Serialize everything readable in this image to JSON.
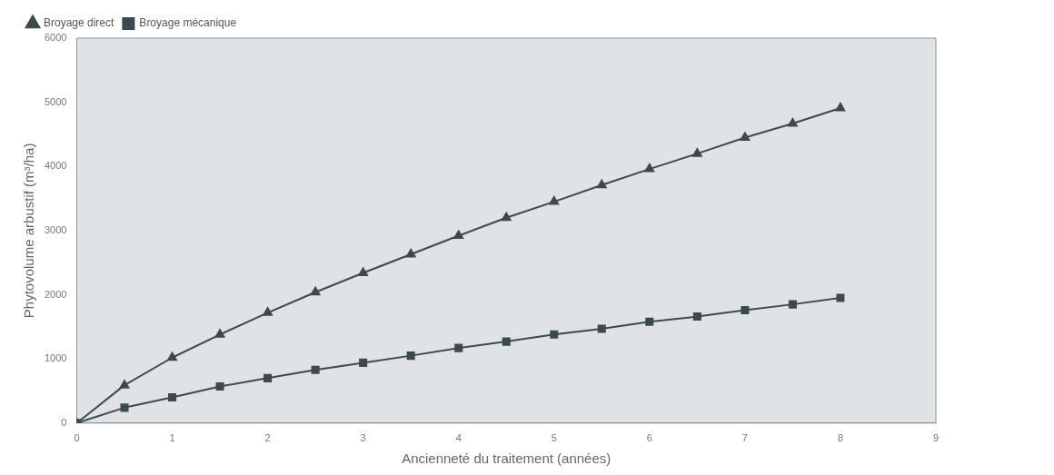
{
  "chart_data": {
    "type": "line",
    "xlabel": "Ancienneté du traitement (années)",
    "ylabel": "Phytovolume arbustif (m³/ha)",
    "xlim": [
      0,
      9
    ],
    "xticks": [
      0,
      1,
      2,
      3,
      4,
      5,
      6,
      7,
      8,
      9
    ],
    "ylim": [
      0,
      6000
    ],
    "yticks": [
      0,
      1000,
      2000,
      3000,
      4000,
      5000,
      6000
    ],
    "x": [
      0,
      0.5,
      1,
      1.5,
      2,
      2.5,
      3,
      3.5,
      4,
      4.5,
      5,
      5.5,
      6,
      6.5,
      7,
      7.5,
      8
    ],
    "series": [
      {
        "name": "Broyage direct",
        "color": "#3d4a4d",
        "marker": "triangle",
        "values": [
          0,
          590,
          1020,
          1380,
          1720,
          2040,
          2340,
          2630,
          2920,
          3200,
          3450,
          3710,
          3960,
          4200,
          4450,
          4670,
          4910
        ]
      },
      {
        "name": "Broyage mécanique",
        "color": "#3d4a4d",
        "marker": "square",
        "values": [
          0,
          240,
          400,
          570,
          700,
          830,
          940,
          1050,
          1170,
          1270,
          1380,
          1470,
          1580,
          1660,
          1760,
          1850,
          1950
        ]
      }
    ],
    "grid": false,
    "legend": "top left",
    "line_style": "solid"
  }
}
